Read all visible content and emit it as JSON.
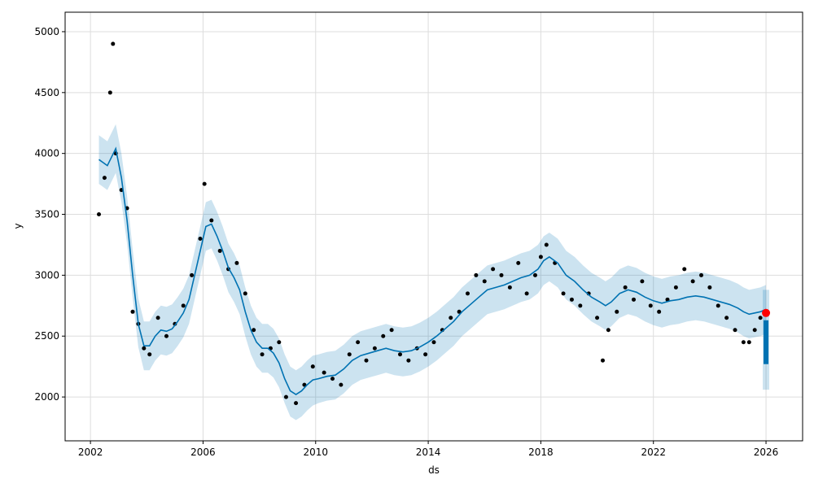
{
  "chart_data": {
    "type": "line",
    "title": "",
    "xlabel": "ds",
    "ylabel": "y",
    "xlim": [
      2001.1,
      2027.3
    ],
    "ylim": [
      1640,
      5160
    ],
    "grid": true,
    "x_ticks": [
      2002,
      2006,
      2010,
      2014,
      2018,
      2022,
      2026
    ],
    "y_ticks": [
      2000,
      2500,
      3000,
      3500,
      4000,
      4500,
      5000
    ],
    "colors": {
      "observed": "#000000",
      "forecast": "#0072B2",
      "uncertainty": "#0072B2",
      "last_point": "#ff0000",
      "grid": "#dddddd"
    },
    "forecast_series": {
      "x": [
        2002.3,
        2002.6,
        2002.9,
        2003.1,
        2003.3,
        2003.5,
        2003.7,
        2003.9,
        2004.1,
        2004.3,
        2004.5,
        2004.7,
        2004.9,
        2005.1,
        2005.3,
        2005.5,
        2005.7,
        2005.9,
        2006.1,
        2006.3,
        2006.5,
        2006.7,
        2006.9,
        2007.1,
        2007.3,
        2007.5,
        2007.7,
        2007.9,
        2008.1,
        2008.3,
        2008.5,
        2008.7,
        2008.9,
        2009.1,
        2009.3,
        2009.5,
        2009.7,
        2009.9,
        2010.1,
        2010.4,
        2010.7,
        2011.0,
        2011.3,
        2011.6,
        2011.9,
        2012.2,
        2012.5,
        2012.8,
        2013.1,
        2013.4,
        2013.7,
        2014.0,
        2014.3,
        2014.6,
        2014.9,
        2015.2,
        2015.5,
        2015.8,
        2016.1,
        2016.4,
        2016.7,
        2017.0,
        2017.3,
        2017.6,
        2017.9,
        2018.1,
        2018.3,
        2018.6,
        2018.9,
        2019.2,
        2019.5,
        2019.8,
        2020.1,
        2020.3,
        2020.5,
        2020.8,
        2021.1,
        2021.4,
        2021.7,
        2022.0,
        2022.3,
        2022.6,
        2022.9,
        2023.2,
        2023.5,
        2023.8,
        2024.1,
        2024.4,
        2024.7,
        2025.0,
        2025.2,
        2025.4,
        2025.6,
        2025.8,
        2026.0
      ],
      "y": [
        3950,
        3900,
        4040,
        3800,
        3450,
        3000,
        2600,
        2420,
        2420,
        2500,
        2550,
        2540,
        2560,
        2620,
        2690,
        2800,
        3000,
        3200,
        3400,
        3420,
        3320,
        3200,
        3060,
        2980,
        2880,
        2700,
        2550,
        2450,
        2400,
        2400,
        2360,
        2280,
        2150,
        2050,
        2020,
        2050,
        2100,
        2140,
        2150,
        2170,
        2180,
        2230,
        2300,
        2340,
        2360,
        2380,
        2400,
        2380,
        2370,
        2380,
        2410,
        2450,
        2500,
        2560,
        2620,
        2700,
        2760,
        2820,
        2880,
        2900,
        2920,
        2950,
        2980,
        3000,
        3050,
        3120,
        3150,
        3100,
        3000,
        2950,
        2880,
        2820,
        2780,
        2750,
        2780,
        2850,
        2880,
        2860,
        2820,
        2790,
        2770,
        2790,
        2800,
        2820,
        2830,
        2820,
        2800,
        2780,
        2760,
        2730,
        2700,
        2680,
        2690,
        2700,
        2720
      ],
      "lower": [
        3750,
        3700,
        3840,
        3600,
        3260,
        2810,
        2410,
        2220,
        2220,
        2300,
        2350,
        2340,
        2360,
        2420,
        2490,
        2600,
        2800,
        3000,
        3200,
        3220,
        3120,
        3000,
        2860,
        2780,
        2680,
        2500,
        2350,
        2250,
        2200,
        2200,
        2160,
        2080,
        1950,
        1840,
        1810,
        1840,
        1890,
        1930,
        1950,
        1970,
        1980,
        2030,
        2100,
        2140,
        2160,
        2180,
        2200,
        2180,
        2170,
        2180,
        2210,
        2250,
        2300,
        2360,
        2420,
        2500,
        2560,
        2620,
        2680,
        2700,
        2720,
        2750,
        2780,
        2800,
        2850,
        2920,
        2950,
        2900,
        2800,
        2750,
        2680,
        2620,
        2580,
        2550,
        2580,
        2650,
        2680,
        2660,
        2620,
        2590,
        2570,
        2590,
        2600,
        2620,
        2630,
        2620,
        2600,
        2580,
        2560,
        2530,
        2500,
        2480,
        2490,
        2500,
        2520
      ],
      "upper": [
        4150,
        4100,
        4240,
        4000,
        3650,
        3210,
        2810,
        2620,
        2620,
        2700,
        2750,
        2740,
        2760,
        2820,
        2890,
        3000,
        3200,
        3400,
        3600,
        3620,
        3520,
        3400,
        3260,
        3180,
        3080,
        2900,
        2750,
        2650,
        2600,
        2600,
        2560,
        2480,
        2350,
        2250,
        2220,
        2250,
        2300,
        2340,
        2350,
        2370,
        2380,
        2430,
        2500,
        2540,
        2560,
        2580,
        2600,
        2580,
        2570,
        2580,
        2610,
        2650,
        2700,
        2760,
        2820,
        2900,
        2960,
        3020,
        3080,
        3100,
        3120,
        3150,
        3180,
        3200,
        3250,
        3320,
        3350,
        3300,
        3200,
        3150,
        3080,
        3020,
        2980,
        2950,
        2980,
        3050,
        3080,
        3060,
        3020,
        2990,
        2970,
        2990,
        3000,
        3020,
        3030,
        3020,
        3000,
        2980,
        2960,
        2930,
        2900,
        2880,
        2890,
        2900,
        2920
      ]
    },
    "forecast_tail": {
      "x": [
        2026.0
      ],
      "y_low": [
        2270
      ],
      "y_high": [
        2630
      ],
      "band_low": [
        2060
      ],
      "band_high": [
        2880
      ]
    },
    "observed_series": {
      "x": [
        2002.3,
        2002.5,
        2002.7,
        2002.8,
        2002.9,
        2003.1,
        2003.3,
        2003.5,
        2003.7,
        2003.9,
        2004.1,
        2004.4,
        2004.7,
        2005.0,
        2005.3,
        2005.6,
        2005.9,
        2006.05,
        2006.3,
        2006.6,
        2006.9,
        2007.2,
        2007.5,
        2007.8,
        2008.1,
        2008.4,
        2008.7,
        2008.95,
        2009.3,
        2009.6,
        2009.9,
        2010.3,
        2010.6,
        2010.9,
        2011.2,
        2011.5,
        2011.8,
        2012.1,
        2012.4,
        2012.7,
        2013.0,
        2013.3,
        2013.6,
        2013.9,
        2014.2,
        2014.5,
        2014.8,
        2015.1,
        2015.4,
        2015.7,
        2016.0,
        2016.3,
        2016.6,
        2016.9,
        2017.2,
        2017.5,
        2017.8,
        2018.0,
        2018.2,
        2018.5,
        2018.8,
        2019.1,
        2019.4,
        2019.7,
        2020.0,
        2020.2,
        2020.4,
        2020.7,
        2021.0,
        2021.3,
        2021.6,
        2021.9,
        2022.2,
        2022.5,
        2022.8,
        2023.1,
        2023.4,
        2023.7,
        2024.0,
        2024.3,
        2024.6,
        2024.9,
        2025.2,
        2025.4,
        2025.6,
        2025.8,
        2025.95
      ],
      "y": [
        3500,
        3800,
        4500,
        4900,
        4000,
        3700,
        3550,
        2700,
        2600,
        2400,
        2350,
        2650,
        2500,
        2600,
        2750,
        3000,
        3300,
        3750,
        3450,
        3200,
        3050,
        3100,
        2850,
        2550,
        2350,
        2400,
        2450,
        2000,
        1950,
        2100,
        2250,
        2200,
        2150,
        2100,
        2350,
        2450,
        2300,
        2400,
        2500,
        2550,
        2350,
        2300,
        2400,
        2350,
        2450,
        2550,
        2650,
        2700,
        2850,
        3000,
        2950,
        3050,
        3000,
        2900,
        3100,
        2850,
        3000,
        3150,
        3250,
        3100,
        2850,
        2800,
        2750,
        2850,
        2650,
        2300,
        2550,
        2700,
        2900,
        2800,
        2950,
        2750,
        2700,
        2800,
        2900,
        3050,
        2950,
        3000,
        2900,
        2750,
        2650,
        2550,
        2450,
        2450,
        2550,
        2650,
        2690
      ]
    },
    "last_point": {
      "x": 2026.0,
      "y": 2690
    }
  }
}
